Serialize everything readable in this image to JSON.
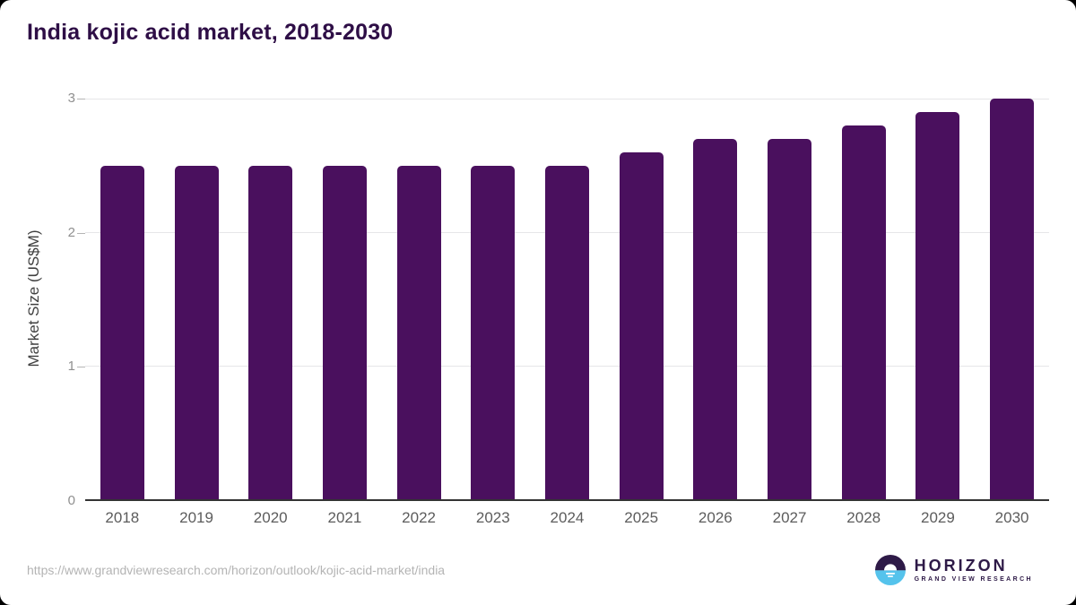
{
  "page": {
    "title": "India kojic acid market, 2018-2030"
  },
  "chart_data": {
    "type": "bar",
    "title": "India kojic acid market, 2018-2030",
    "categories": [
      "2018",
      "2019",
      "2020",
      "2021",
      "2022",
      "2023",
      "2024",
      "2025",
      "2026",
      "2027",
      "2028",
      "2029",
      "2030"
    ],
    "values": [
      2.5,
      2.5,
      2.5,
      2.5,
      2.5,
      2.5,
      2.5,
      2.6,
      2.7,
      2.7,
      2.8,
      2.9,
      3.0
    ],
    "xlabel": "",
    "ylabel": "Market Size (US$M)",
    "ylim": [
      0,
      3
    ],
    "yticks": [
      0,
      1,
      2,
      3
    ],
    "grid": true,
    "legend": false,
    "bar_corner_radius": "rounded-top"
  },
  "colors": {
    "bar": "#4A105E",
    "title": "#2E0E46",
    "y_title": "#404040",
    "tick_label": "#8f8f8f",
    "tick_mark": "#b5b5b5",
    "x_label": "#5c5c5c",
    "axis": "#333333",
    "grid": "#e6e6e8",
    "url": "#b4b4b4",
    "logo_purple": "#2E1A47",
    "logo_blue": "#55C3EC"
  },
  "footer": {
    "source_url": "https://www.grandviewresearch.com/horizon/outlook/kojic-acid-market/india",
    "logo": {
      "brand": "HORIZON",
      "tagline": "GRAND VIEW RESEARCH"
    }
  }
}
